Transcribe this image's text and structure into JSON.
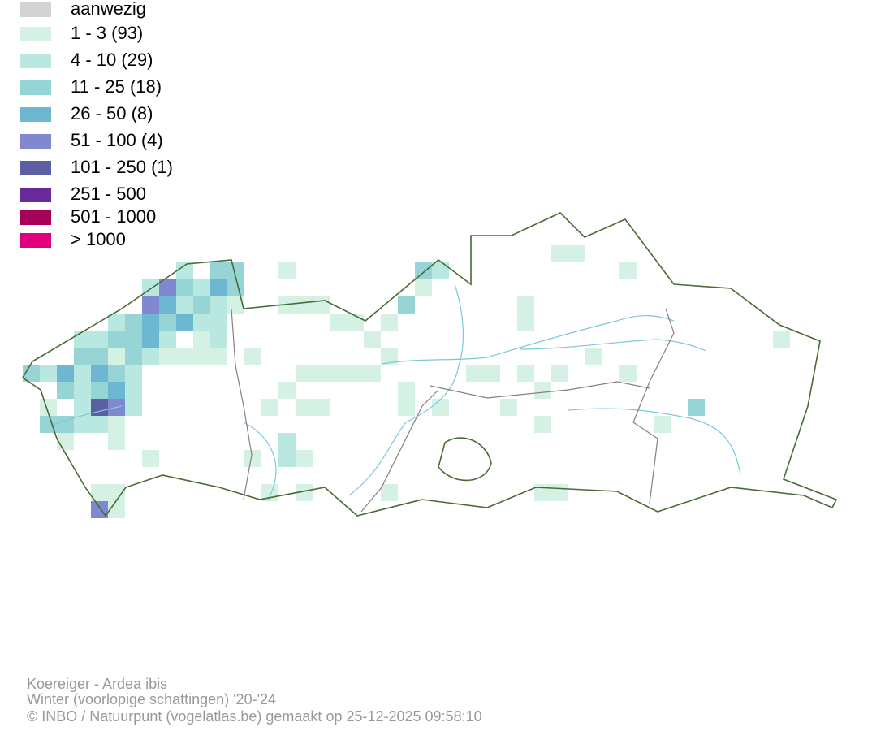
{
  "legend": {
    "items": [
      {
        "label": "aanwezig",
        "color": "#d3d3d3"
      },
      {
        "label": "1 - 3 (93)",
        "color": "#d4f1e4"
      },
      {
        "label": "4 - 10 (29)",
        "color": "#b8e8e0"
      },
      {
        "label": "11 - 25 (18)",
        "color": "#96d4d6"
      },
      {
        "label": "26 - 50 (8)",
        "color": "#6db7d2"
      },
      {
        "label": "51 - 100 (4)",
        "color": "#8089d0"
      },
      {
        "label": "101 - 250 (1)",
        "color": "#5c5ea3"
      },
      {
        "label": "251 - 500",
        "color": "#6a2a9a"
      },
      {
        "label": "501 - 1000",
        "color": "#a5005a"
      },
      {
        "label": "> 1000",
        "color": "#e0007c"
      }
    ]
  },
  "footer": {
    "lines": [
      "Koereiger - Ardea ibis",
      "Winter (voorlopige schattingen) '20-'24",
      "© INBO / Natuurpunt (vogelatlas.be) gemaakt op 25-12-2025 09:58:10"
    ]
  }
}
